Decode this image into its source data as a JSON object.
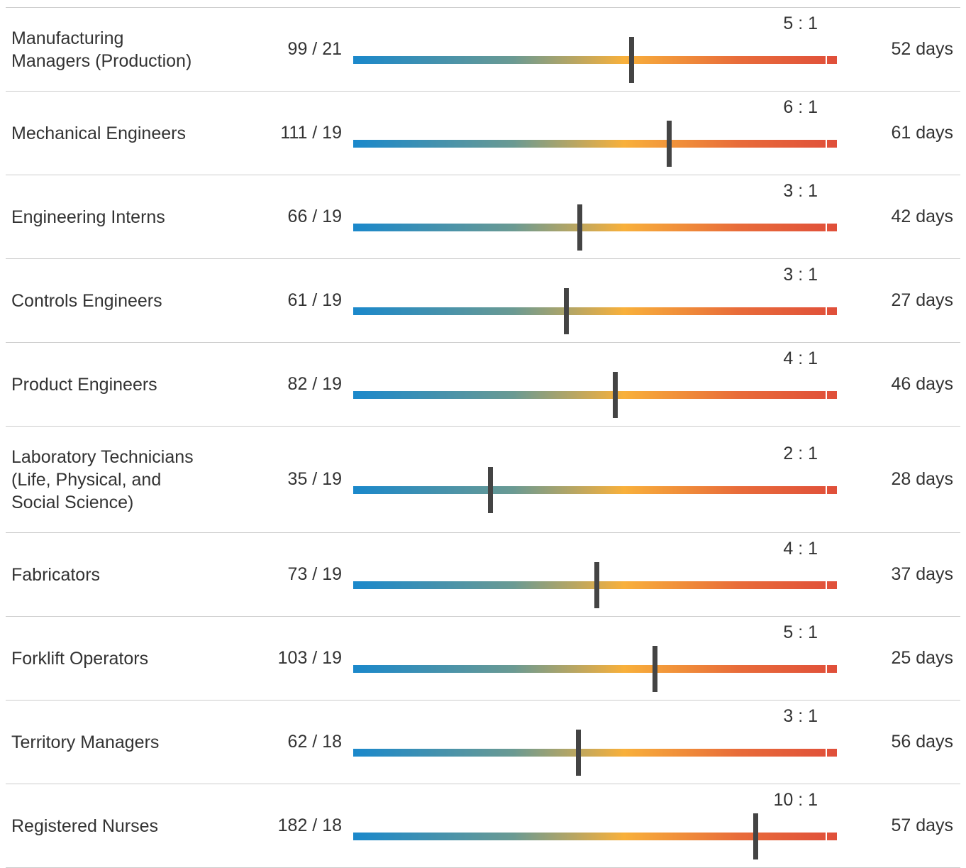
{
  "rows": [
    {
      "occupation": "Manufacturing Managers (Production)",
      "counts": "99 / 21",
      "ratio": "5 : 1",
      "marker": 0.575,
      "days": "52 days"
    },
    {
      "occupation": "Mechanical Engineers",
      "counts": "111 / 19",
      "ratio": "6 : 1",
      "marker": 0.653,
      "days": "61 days"
    },
    {
      "occupation": "Engineering Interns",
      "counts": "66 / 19",
      "ratio": "3 : 1",
      "marker": 0.469,
      "days": "42 days"
    },
    {
      "occupation": "Controls Engineers",
      "counts": "61 / 19",
      "ratio": "3 : 1",
      "marker": 0.441,
      "days": "27 days"
    },
    {
      "occupation": "Product Engineers",
      "counts": "82 / 19",
      "ratio": "4 : 1",
      "marker": 0.542,
      "days": "46 days"
    },
    {
      "occupation": "Laboratory Technicians (Life, Physical, and Social Science)",
      "counts": "35 / 19",
      "ratio": "2 : 1",
      "marker": 0.284,
      "days": "28 days"
    },
    {
      "occupation": "Fabricators",
      "counts": "73 / 19",
      "ratio": "4 : 1",
      "marker": 0.504,
      "days": "37 days"
    },
    {
      "occupation": "Forklift Operators",
      "counts": "103 / 19",
      "ratio": "5 : 1",
      "marker": 0.624,
      "days": "25 days"
    },
    {
      "occupation": "Territory Managers",
      "counts": "62 / 18",
      "ratio": "3 : 1",
      "marker": 0.466,
      "days": "56 days"
    },
    {
      "occupation": "Registered Nurses",
      "counts": "182 / 18",
      "ratio": "10 : 1",
      "marker": 0.832,
      "days": "57 days"
    }
  ]
}
